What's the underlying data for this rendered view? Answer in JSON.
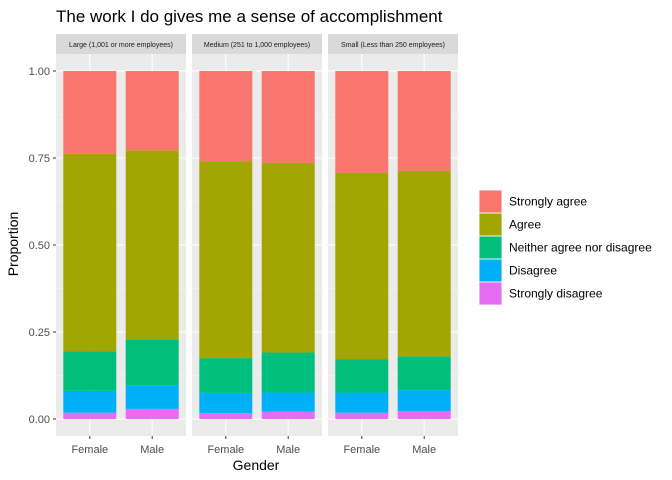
{
  "chart_data": {
    "type": "bar",
    "stacked": true,
    "title": "The work I do gives me a sense of accomplishment",
    "xlabel": "Gender",
    "ylabel": "Proportion",
    "ylim": [
      0,
      1
    ],
    "y_ticks": [
      "0.00",
      "0.25",
      "0.50",
      "0.75",
      "1.00"
    ],
    "y_tick_values": [
      0,
      0.25,
      0.5,
      0.75,
      1
    ],
    "grid": true,
    "legend_position": "right",
    "categories": [
      "Female",
      "Male"
    ],
    "series": [
      {
        "name": "Strongly agree",
        "color": "#F8766D"
      },
      {
        "name": "Agree",
        "color": "#A3A500"
      },
      {
        "name": "Neither agree nor disagree",
        "color": "#00BF7D"
      },
      {
        "name": "Disagree",
        "color": "#00B0F6"
      },
      {
        "name": "Strongly disagree",
        "color": "#E76BF3"
      }
    ],
    "panels": [
      {
        "label": "Large (1,001 or more employees)",
        "values": {
          "Female": [
            0.238,
            0.567,
            0.114,
            0.063,
            0.018
          ],
          "Male": [
            0.228,
            0.543,
            0.132,
            0.068,
            0.029
          ]
        }
      },
      {
        "label": "Medium (251 to 1,000 employees)",
        "values": {
          "Female": [
            0.259,
            0.566,
            0.1,
            0.058,
            0.017
          ],
          "Male": [
            0.264,
            0.545,
            0.115,
            0.055,
            0.021
          ]
        }
      },
      {
        "label": "Small (Less than 250 employees)",
        "values": {
          "Female": [
            0.293,
            0.536,
            0.095,
            0.058,
            0.018
          ],
          "Male": [
            0.287,
            0.533,
            0.097,
            0.06,
            0.023
          ]
        }
      }
    ]
  }
}
